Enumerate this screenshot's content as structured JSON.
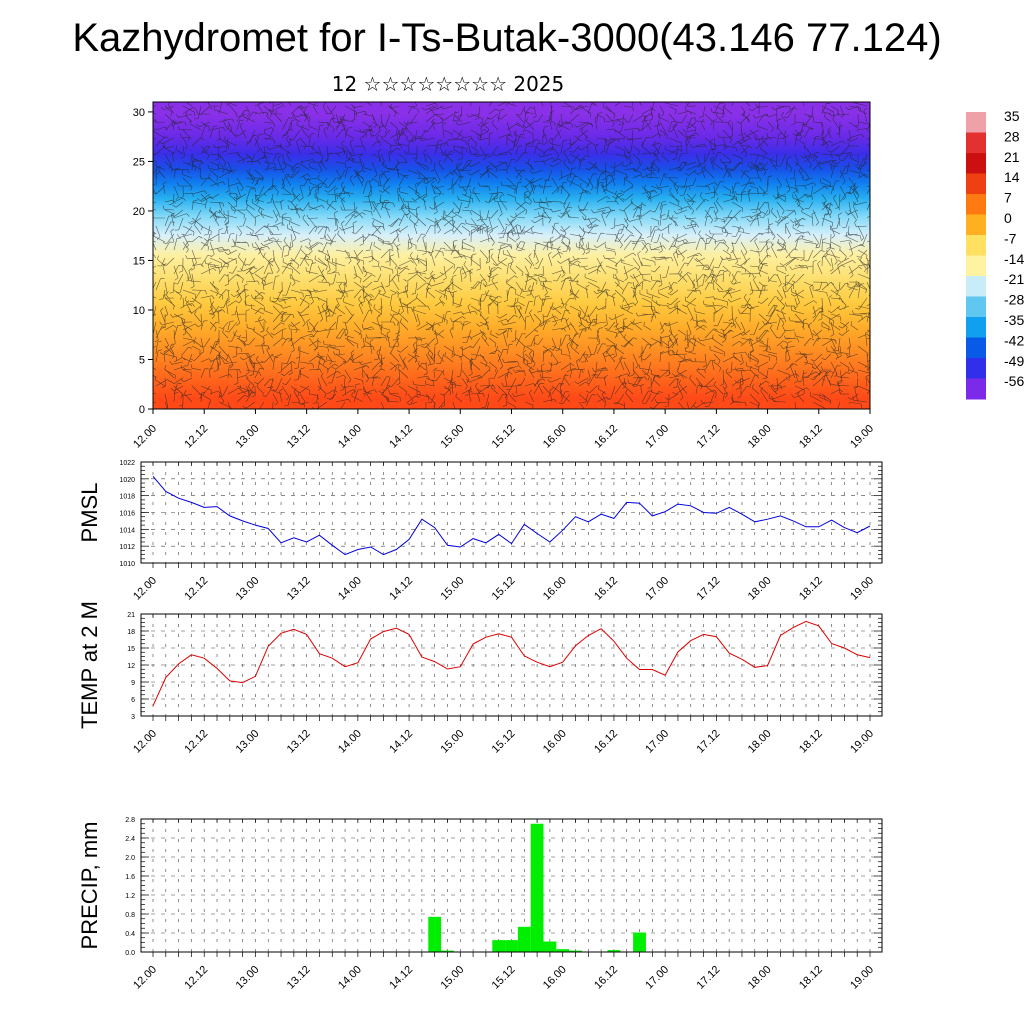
{
  "page": {
    "title": "Kazhydromet for I-Ts-Butak-3000(43.146 77.124)",
    "subtitle": "12 ☆☆☆☆☆☆☆☆ 2025"
  },
  "chart_data": [
    {
      "type": "heatmap",
      "name": "vertical-profile",
      "x_tick_labels": [
        "12.00",
        "12.12",
        "13.00",
        "13.12",
        "14.00",
        "14.12",
        "15.00",
        "15.12",
        "16.00",
        "16.12",
        "17.00",
        "17.12",
        "18.00",
        "18.12",
        "19.00"
      ],
      "y_tick_labels": [
        "0",
        "5",
        "10",
        "15",
        "20",
        "25",
        "30"
      ],
      "ylim": [
        0,
        31
      ],
      "colorbar_labels": [
        "35",
        "28",
        "21",
        "14",
        "7",
        "0",
        "-7",
        "-14",
        "-21",
        "-28",
        "-35",
        "-42",
        "-49",
        "-56"
      ],
      "colorbar_colors": [
        "#f0a0a8",
        "#e33030",
        "#cc1010",
        "#ee4010",
        "#ff7a10",
        "#ffb020",
        "#ffe060",
        "#fff2a0",
        "#c8ecf8",
        "#60c8f0",
        "#10a0f0",
        "#0a5ae8",
        "#3030e8",
        "#7a2ae8"
      ],
      "profile": {
        "row_colors_bottom_to_top": [
          "#ff4a18",
          "#ff6a1c",
          "#ff8c22",
          "#ffad2a",
          "#ffcb40",
          "#fde070",
          "#fff0a0",
          "#d8f0fa",
          "#80d8f8",
          "#28b0f0",
          "#1080f0",
          "#1850e8",
          "#3a2ee8",
          "#6a2ae8",
          "#8a30e8"
        ],
        "row_heights_km": [
          0,
          2.2,
          4.5,
          7,
          9.5,
          12,
          14.5,
          16.5,
          18.5,
          20.5,
          22,
          23.5,
          25,
          26.5,
          28.5,
          31
        ]
      }
    },
    {
      "type": "line",
      "name": "pmsl",
      "ylabel": "PMSL",
      "color": "#0000dd",
      "ylim": [
        1010,
        1022
      ],
      "y_tick_labels": [
        "1010",
        "1012",
        "1014",
        "1016",
        "1018",
        "1020",
        "1022"
      ],
      "x_tick_labels": [
        "12.00",
        "12.12",
        "13.00",
        "13.12",
        "14.00",
        "14.12",
        "15.00",
        "15.12",
        "16.00",
        "16.12",
        "17.00",
        "17.12",
        "18.00",
        "18.12",
        "19.00"
      ],
      "values": [
        1020.3,
        1018.5,
        1017.7,
        1017.2,
        1016.6,
        1016.7,
        1015.6,
        1015.0,
        1014.5,
        1014.1,
        1012.4,
        1013.0,
        1012.5,
        1013.3,
        1012.1,
        1011.0,
        1011.6,
        1011.9,
        1011.0,
        1011.6,
        1012.8,
        1015.2,
        1014.2,
        1012.1,
        1011.9,
        1012.9,
        1012.4,
        1013.4,
        1012.3,
        1014.6,
        1013.5,
        1012.5,
        1013.9,
        1015.5,
        1014.9,
        1015.8,
        1015.3,
        1017.2,
        1017.1,
        1015.6,
        1016.1,
        1017.0,
        1016.8,
        1016.0,
        1015.9,
        1016.6,
        1015.8,
        1014.9,
        1015.2,
        1015.6,
        1015.0,
        1014.3,
        1014.3,
        1015.1,
        1014.2,
        1013.6,
        1014.4
      ]
    },
    {
      "type": "line",
      "name": "temp2m",
      "ylabel": "TEMP at 2 M",
      "color": "#dd0000",
      "ylim": [
        3,
        21
      ],
      "y_tick_labels": [
        "3",
        "6",
        "9",
        "12",
        "15",
        "18",
        "21"
      ],
      "x_tick_labels": [
        "12.00",
        "12.12",
        "13.00",
        "13.12",
        "14.00",
        "14.12",
        "15.00",
        "15.12",
        "16.00",
        "16.12",
        "17.00",
        "17.12",
        "18.00",
        "18.12",
        "19.00"
      ],
      "values": [
        4.8,
        9.8,
        12.2,
        13.8,
        13.2,
        11.4,
        9.2,
        8.9,
        10.0,
        15.3,
        17.6,
        18.3,
        17.4,
        14.0,
        13.2,
        11.7,
        12.4,
        16.6,
        17.9,
        18.5,
        17.4,
        13.4,
        12.6,
        11.3,
        11.7,
        15.7,
        16.9,
        17.5,
        16.9,
        13.6,
        12.5,
        11.7,
        12.5,
        15.4,
        17.2,
        18.4,
        16.2,
        13.2,
        11.2,
        11.2,
        10.2,
        14.3,
        16.3,
        17.4,
        17.0,
        14.1,
        13.0,
        11.6,
        11.9,
        17.2,
        18.6,
        19.7,
        18.9,
        15.8,
        15.0,
        13.8,
        13.3
      ]
    },
    {
      "type": "bar",
      "name": "precip",
      "ylabel": "PRECIP, mm",
      "color": "#00ee00",
      "ylim": [
        0,
        2.8
      ],
      "y_tick_labels": [
        "0.0",
        "0.4",
        "0.8",
        "1.2",
        "1.6",
        "2.0",
        "2.4",
        "2.8"
      ],
      "x_tick_labels": [
        "12.00",
        "12.12",
        "13.00",
        "13.12",
        "14.00",
        "14.12",
        "15.00",
        "15.12",
        "16.00",
        "16.12",
        "17.00",
        "17.12",
        "18.00",
        "18.12",
        "19.00"
      ],
      "values": [
        0,
        0,
        0,
        0,
        0,
        0,
        0,
        0,
        0,
        0,
        0,
        0,
        0,
        0,
        0,
        0,
        0,
        0,
        0,
        0,
        0,
        0.01,
        0.74,
        0.03,
        0.01,
        0,
        0,
        0.25,
        0.25,
        0.53,
        2.7,
        0.22,
        0.06,
        0.03,
        0,
        0,
        0.04,
        0,
        0.41,
        0,
        0,
        0,
        0,
        0,
        0,
        0,
        0,
        0,
        0,
        0,
        0,
        0,
        0,
        0,
        0,
        0,
        0
      ]
    }
  ]
}
